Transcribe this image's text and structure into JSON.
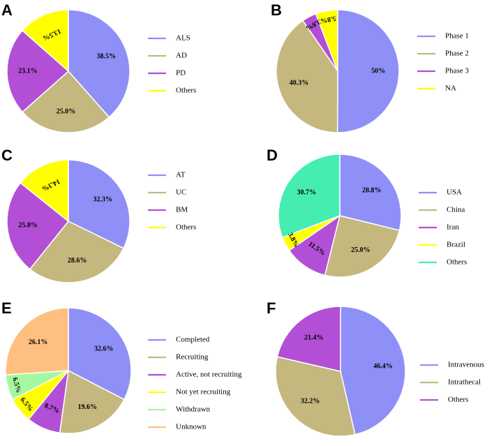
{
  "chart_data": [
    {
      "panel": "A",
      "type": "pie",
      "title": "",
      "series": [
        {
          "name": "ALS",
          "value": 38.5,
          "label": "38.5%",
          "color": "#8f8ff8"
        },
        {
          "name": "AD",
          "value": 25.0,
          "label": "25.0%",
          "color": "#c4b87f"
        },
        {
          "name": "PD",
          "value": 23.1,
          "label": "23.1%",
          "color": "#b24fd6"
        },
        {
          "name": "Others",
          "value": 13.5,
          "label": "13.5%",
          "color": "#ffff00"
        }
      ]
    },
    {
      "panel": "B",
      "type": "pie",
      "title": "",
      "series": [
        {
          "name": "Phase 1",
          "value": 50,
          "label": "50%",
          "color": "#8f8ff8"
        },
        {
          "name": "Phase 2",
          "value": 40.3,
          "label": "40.3%",
          "color": "#c4b87f"
        },
        {
          "name": "Phase 3",
          "value": 3.8,
          "label": "3.8%",
          "color": "#b24fd6"
        },
        {
          "name": "NA",
          "value": 5.8,
          "label": "5.8%",
          "color": "#ffff00"
        }
      ]
    },
    {
      "panel": "C",
      "type": "pie",
      "title": "",
      "series": [
        {
          "name": "AT",
          "value": 32.3,
          "label": "32.3%",
          "color": "#8f8ff8"
        },
        {
          "name": "UC",
          "value": 28.6,
          "label": "28.6%",
          "color": "#c4b87f"
        },
        {
          "name": "BM",
          "value": 25.0,
          "label": "25.0%",
          "color": "#b24fd6"
        },
        {
          "name": "Others",
          "value": 14.3,
          "label": "14.3%",
          "color": "#ffff00"
        }
      ]
    },
    {
      "panel": "D",
      "type": "pie",
      "title": "",
      "series": [
        {
          "name": "USA",
          "value": 28.8,
          "label": "28.8%",
          "color": "#8f8ff8"
        },
        {
          "name": "China",
          "value": 25.0,
          "label": "25.0%",
          "color": "#c4b87f"
        },
        {
          "name": "Iran",
          "value": 11.5,
          "label": "11.5%",
          "color": "#b24fd6"
        },
        {
          "name": "Brazil",
          "value": 3.8,
          "label": "3.8%",
          "color": "#ffff00"
        },
        {
          "name": "Others",
          "value": 30.7,
          "label": "30.7%",
          "color": "#45edb1"
        }
      ]
    },
    {
      "panel": "E",
      "type": "pie",
      "title": "",
      "series": [
        {
          "name": "Completed",
          "value": 32.6,
          "label": "32.6%",
          "color": "#8f8ff8"
        },
        {
          "name": "Recruiting",
          "value": 19.6,
          "label": "19.6%",
          "color": "#c4b87f"
        },
        {
          "name": "Active, not recruiting",
          "value": 8.7,
          "label": "8.7%",
          "color": "#b24fd6"
        },
        {
          "name": "Not yet recruiting",
          "value": 6.5,
          "label": "6.5%",
          "color": "#ffff00"
        },
        {
          "name": "Withdrawn",
          "value": 6.5,
          "label": "6.5%",
          "color": "#a5f7a0"
        },
        {
          "name": "Unknown",
          "value": 26.1,
          "label": "26.1%",
          "color": "#ffbf80"
        }
      ]
    },
    {
      "panel": "F",
      "type": "pie",
      "title": "",
      "series": [
        {
          "name": "Intravenous",
          "value": 46.4,
          "label": "46.4%",
          "color": "#8f8ff8"
        },
        {
          "name": "Intrathecal",
          "value": 32.2,
          "label": "32.2%",
          "color": "#c4b87f"
        },
        {
          "name": "Others",
          "value": 21.4,
          "label": "21.4%",
          "color": "#b24fd6"
        }
      ]
    }
  ]
}
